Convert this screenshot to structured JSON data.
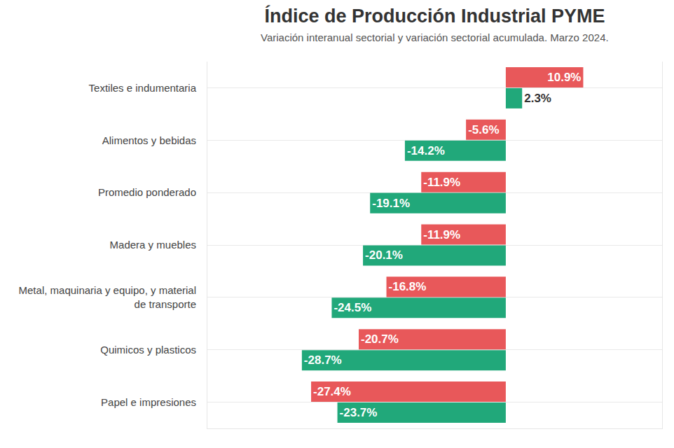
{
  "chart_data": {
    "type": "bar",
    "orientation": "horizontal",
    "title": "Índice de Producción Industrial PYME",
    "subtitle": "Variación interanual sectorial y variación sectorial acumulada. Marzo 2024.",
    "categories": [
      "Textiles e indumentaria",
      "Alimentos y bebidas",
      "Promedio ponderado",
      "Madera y muebles",
      "Metal, maquinaria y equipo, y material de transporte",
      "Quimicos y plasticos",
      "Papel e impresiones"
    ],
    "series": [
      {
        "color": "#e8585a",
        "values": [
          10.9,
          -5.6,
          -11.9,
          -11.9,
          -16.8,
          -20.7,
          -27.4
        ],
        "value_labels": [
          "10.9%",
          "-5.6%",
          "-11.9%",
          "-11.9%",
          "-16.8%",
          "-20.7%",
          "-27.4%"
        ]
      },
      {
        "color": "#21a87a",
        "values": [
          2.3,
          -14.2,
          -19.1,
          -20.1,
          -24.5,
          -28.7,
          -23.7
        ],
        "value_labels": [
          "2.3%",
          "-14.2%",
          "-19.1%",
          "-20.1%",
          "-24.5%",
          "-28.7%",
          "-23.7%"
        ]
      }
    ],
    "xlim": [
      -42,
      22
    ],
    "grid": true,
    "data_labels": true,
    "tick_labels": "y"
  }
}
